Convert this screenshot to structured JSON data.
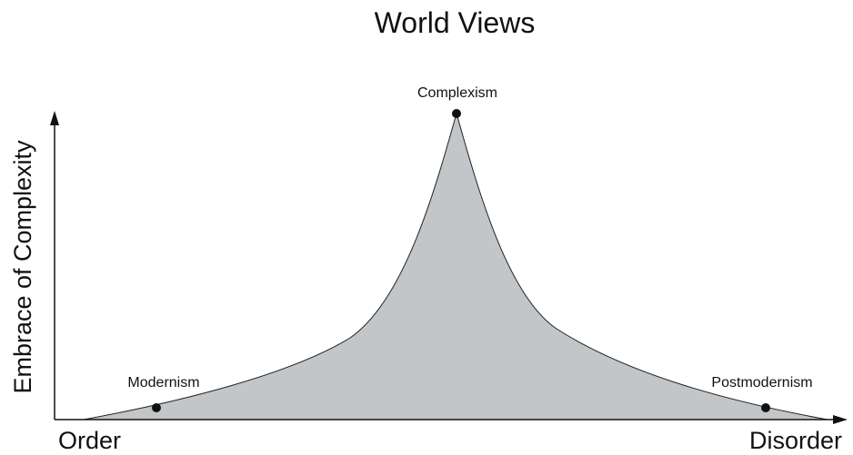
{
  "title": "World Views",
  "axes": {
    "y_label": "Embrace of Complexity",
    "x_start": "Order",
    "x_end": "Disorder"
  },
  "points": [
    {
      "label": "Modernism"
    },
    {
      "label": "Complexism"
    },
    {
      "label": "Postmodernism"
    }
  ]
}
